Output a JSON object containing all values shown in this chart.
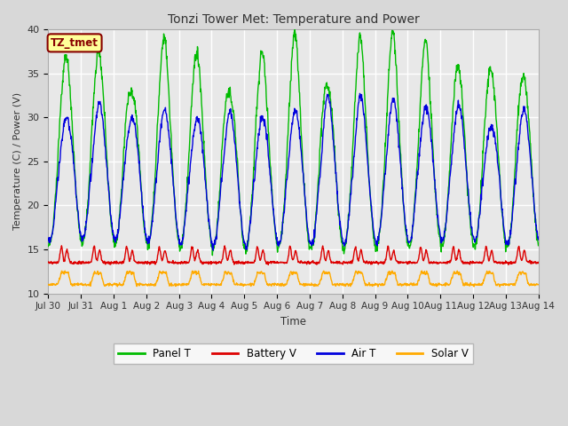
{
  "title": "Tonzi Tower Met: Temperature and Power",
  "xlabel": "Time",
  "ylabel": "Temperature (C) / Power (V)",
  "ylim": [
    10,
    40
  ],
  "xtick_labels": [
    "Jul 30",
    "Jul 31",
    "Aug 1",
    "Aug 2",
    "Aug 3",
    "Aug 4",
    "Aug 5",
    "Aug 6",
    "Aug 7",
    "Aug 8",
    "Aug 9",
    "Aug 10",
    "Aug 11",
    "Aug 12",
    "Aug 13",
    "Aug 14"
  ],
  "xtick_positions": [
    0,
    1,
    2,
    3,
    4,
    5,
    6,
    7,
    8,
    9,
    10,
    11,
    12,
    13,
    14,
    15
  ],
  "ytick_positions": [
    10,
    15,
    20,
    25,
    30,
    35,
    40
  ],
  "panel_color": "#00bb00",
  "battery_color": "#dd0000",
  "air_color": "#0000dd",
  "solar_color": "#ffaa00",
  "bg_color": "#d8d8d8",
  "plot_bg_color": "#e8e8e8",
  "grid_color": "#ffffff",
  "tz_label": "TZ_tmet",
  "tz_label_color": "#880000",
  "tz_label_bg": "#ffff99",
  "legend_labels": [
    "Panel T",
    "Battery V",
    "Air T",
    "Solar V"
  ],
  "title_color": "#333333",
  "tick_color": "#333333"
}
